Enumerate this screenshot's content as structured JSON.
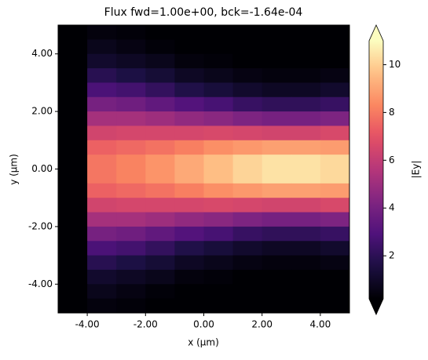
{
  "chart_data": {
    "type": "heatmap",
    "title": "Flux fwd=1.00e+00, bck=-1.64e-04",
    "x_label": "x (μm)",
    "y_label": "y (μm)",
    "colorbar_label": "|Ey|",
    "x": [
      -4.5,
      -3.5,
      -2.5,
      -1.5,
      -0.5,
      0.5,
      1.5,
      2.5,
      3.5,
      4.5
    ],
    "y": [
      4.75,
      4.25,
      3.75,
      3.25,
      2.75,
      2.25,
      1.75,
      1.25,
      0.75,
      0.25,
      -0.25,
      -0.75,
      -1.25,
      -1.75,
      -2.25,
      -2.75,
      -3.25,
      -3.75,
      -4.25,
      -4.75
    ],
    "z": [
      [
        0,
        0.4,
        0.3,
        0.1,
        0.1,
        0.0,
        0.0,
        0.0,
        0.0,
        0.0
      ],
      [
        0,
        0.7,
        0.5,
        0.3,
        0.2,
        0.1,
        0.1,
        0.0,
        0.0,
        0.1
      ],
      [
        0,
        1.1,
        0.9,
        0.7,
        0.4,
        0.3,
        0.2,
        0.1,
        0.1,
        0.2
      ],
      [
        0,
        1.9,
        1.6,
        1.3,
        0.9,
        0.7,
        0.5,
        0.4,
        0.4,
        0.5
      ],
      [
        0,
        2.8,
        2.6,
        2.2,
        1.7,
        1.4,
        1.1,
        0.9,
        0.9,
        1.1
      ],
      [
        0,
        4.0,
        3.8,
        3.4,
        3.0,
        2.7,
        2.3,
        2.1,
        2.1,
        2.3
      ],
      [
        0,
        5.2,
        5.2,
        5.0,
        4.7,
        4.5,
        4.2,
        4.0,
        4.0,
        4.2
      ],
      [
        0,
        6.4,
        6.5,
        6.5,
        6.5,
        6.6,
        6.5,
        6.4,
        6.4,
        6.6
      ],
      [
        0,
        7.4,
        7.6,
        7.8,
        8.1,
        8.5,
        8.7,
        8.9,
        8.9,
        8.8
      ],
      [
        0,
        7.9,
        8.2,
        8.6,
        9.1,
        9.6,
        10.1,
        10.4,
        10.4,
        10.2
      ],
      [
        0,
        7.9,
        8.2,
        8.6,
        9.1,
        9.6,
        10.1,
        10.4,
        10.4,
        10.2
      ],
      [
        0,
        7.4,
        7.6,
        7.8,
        8.1,
        8.5,
        8.7,
        8.9,
        8.9,
        8.8
      ],
      [
        0,
        6.4,
        6.5,
        6.5,
        6.5,
        6.6,
        6.5,
        6.4,
        6.4,
        6.6
      ],
      [
        0,
        5.2,
        5.2,
        5.0,
        4.7,
        4.5,
        4.2,
        4.0,
        4.0,
        4.2
      ],
      [
        0,
        4.0,
        3.8,
        3.4,
        3.0,
        2.7,
        2.3,
        2.1,
        2.1,
        2.3
      ],
      [
        0,
        2.8,
        2.6,
        2.2,
        1.7,
        1.4,
        1.1,
        0.9,
        0.9,
        1.1
      ],
      [
        0,
        1.9,
        1.6,
        1.3,
        0.9,
        0.7,
        0.5,
        0.4,
        0.4,
        0.5
      ],
      [
        0,
        1.1,
        0.9,
        0.7,
        0.4,
        0.3,
        0.2,
        0.1,
        0.1,
        0.2
      ],
      [
        0,
        0.7,
        0.5,
        0.3,
        0.2,
        0.1,
        0.1,
        0.0,
        0.0,
        0.1
      ],
      [
        0,
        0.4,
        0.3,
        0.1,
        0.1,
        0.0,
        0.0,
        0.0,
        0.0,
        0.0
      ]
    ],
    "xlim": [
      -5,
      5
    ],
    "ylim": [
      -5,
      5
    ],
    "zlim": [
      0.2,
      11
    ],
    "xticks": [
      {
        "value": -4,
        "label": "-4.00"
      },
      {
        "value": -2,
        "label": "-2.00"
      },
      {
        "value": 0,
        "label": "0.00"
      },
      {
        "value": 2,
        "label": "2.00"
      },
      {
        "value": 4,
        "label": "4.00"
      }
    ],
    "yticks": [
      {
        "value": -4,
        "label": "-4.00"
      },
      {
        "value": -2,
        "label": "-2.00"
      },
      {
        "value": 0,
        "label": "0.00"
      },
      {
        "value": 2,
        "label": "2.00"
      },
      {
        "value": 4,
        "label": "4.00"
      }
    ],
    "zticks": [
      2,
      4,
      6,
      8,
      10
    ],
    "colormap": "magma"
  }
}
